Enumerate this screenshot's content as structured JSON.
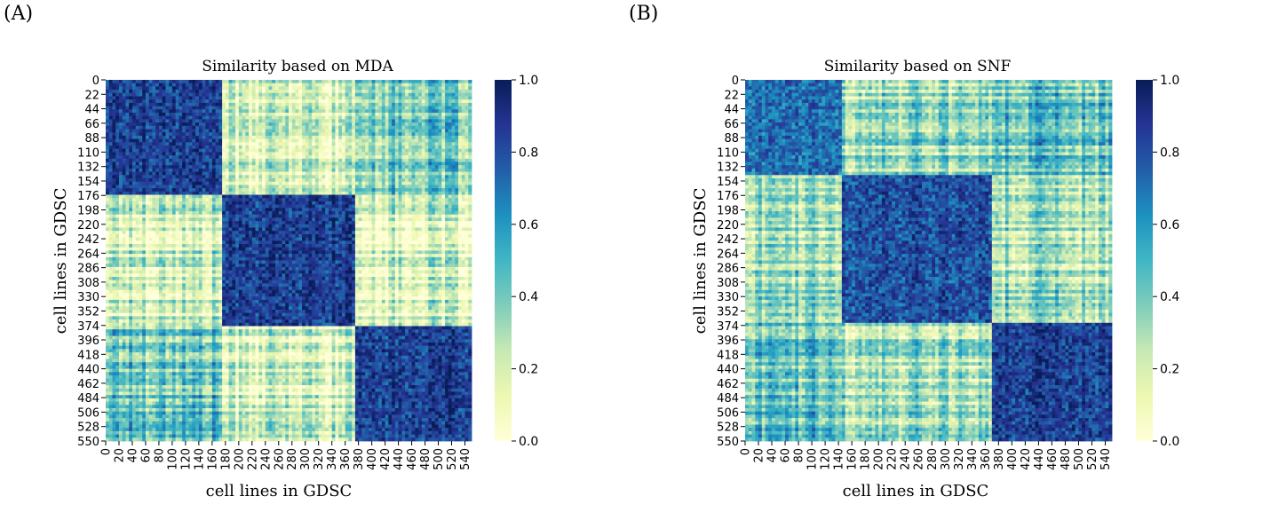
{
  "panel_labels": [
    "(A)",
    "(B)"
  ],
  "colormap": [
    "#ffffd9",
    "#edf8b1",
    "#c7e9b4",
    "#7fcdbb",
    "#41b6c4",
    "#1d91c0",
    "#225ea8",
    "#253494",
    "#081d58"
  ],
  "chart_data": [
    {
      "type": "heatmap",
      "title": "Similarity based on MDA",
      "xlabel": "cell lines in GDSC",
      "ylabel": "cell lines in GDSC",
      "n": 550,
      "x_ticks": [
        0,
        20,
        40,
        60,
        80,
        100,
        120,
        140,
        160,
        180,
        200,
        220,
        240,
        260,
        280,
        300,
        320,
        340,
        360,
        380,
        400,
        420,
        440,
        460,
        480,
        500,
        520,
        540
      ],
      "y_ticks": [
        0,
        22,
        44,
        66,
        88,
        110,
        132,
        154,
        176,
        198,
        220,
        242,
        264,
        286,
        308,
        330,
        352,
        374,
        396,
        418,
        440,
        462,
        484,
        506,
        528,
        550
      ],
      "clusters": [
        [
          0,
          175
        ],
        [
          175,
          375
        ],
        [
          375,
          550
        ]
      ],
      "block_mean_similarity": [
        [
          0.85,
          0.22,
          0.42
        ],
        [
          0.22,
          0.85,
          0.18
        ],
        [
          0.42,
          0.18,
          0.85
        ]
      ],
      "colorbar": {
        "min": 0.0,
        "max": 1.0,
        "ticks": [
          "0.0",
          "0.2",
          "0.4",
          "0.6",
          "0.8",
          "1.0"
        ]
      }
    },
    {
      "type": "heatmap",
      "title": "Similarity based on SNF",
      "xlabel": "cell lines in GDSC",
      "ylabel": "cell lines in GDSC",
      "n": 550,
      "x_ticks": [
        0,
        20,
        40,
        60,
        80,
        100,
        120,
        140,
        160,
        180,
        200,
        220,
        240,
        260,
        280,
        300,
        320,
        340,
        360,
        380,
        400,
        420,
        440,
        460,
        480,
        500,
        520,
        540
      ],
      "y_ticks": [
        0,
        22,
        44,
        66,
        88,
        110,
        132,
        154,
        176,
        198,
        220,
        242,
        264,
        286,
        308,
        330,
        352,
        374,
        396,
        418,
        440,
        462,
        484,
        506,
        528,
        550
      ],
      "clusters": [
        [
          0,
          145
        ],
        [
          145,
          370
        ],
        [
          370,
          550
        ]
      ],
      "block_mean_similarity": [
        [
          0.72,
          0.35,
          0.45
        ],
        [
          0.35,
          0.8,
          0.32
        ],
        [
          0.45,
          0.32,
          0.85
        ]
      ],
      "colorbar": {
        "min": 0.0,
        "max": 1.0,
        "ticks": [
          "0.0",
          "0.2",
          "0.4",
          "0.6",
          "0.8",
          "1.0"
        ]
      }
    }
  ]
}
